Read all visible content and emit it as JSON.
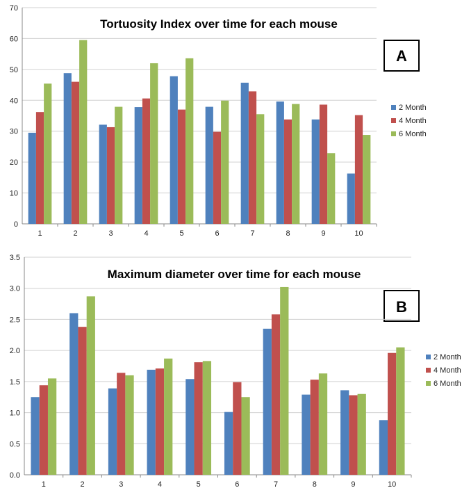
{
  "series_colors": [
    "#4f81bd",
    "#c0504d",
    "#9bbb59"
  ],
  "chart_data": [
    {
      "type": "bar",
      "panel_label": "A",
      "title": "Tortuosity Index over time for each mouse",
      "xlabel": "",
      "ylabel": "",
      "categories": [
        "1",
        "2",
        "3",
        "4",
        "5",
        "6",
        "7",
        "8",
        "9",
        "10"
      ],
      "ylim": [
        0,
        70
      ],
      "yticks": [
        "0",
        "10",
        "20",
        "30",
        "40",
        "50",
        "60",
        "70"
      ],
      "ytick_values": [
        0,
        10,
        20,
        30,
        40,
        50,
        60,
        70
      ],
      "grid": true,
      "legend_position": "right",
      "series": [
        {
          "name": "2 Month",
          "values": [
            29.5,
            48.8,
            32.1,
            37.8,
            47.8,
            37.9,
            45.7,
            39.6,
            33.8,
            16.3
          ]
        },
        {
          "name": "4 Month",
          "values": [
            36.2,
            46.0,
            31.3,
            40.6,
            37.0,
            29.8,
            42.9,
            33.8,
            38.6,
            35.2
          ]
        },
        {
          "name": "6 Month",
          "values": [
            45.4,
            59.5,
            37.9,
            52.0,
            53.6,
            39.9,
            35.5,
            38.8,
            22.9,
            28.8
          ]
        }
      ]
    },
    {
      "type": "bar",
      "panel_label": "B",
      "title": "Maximum diameter over time for each mouse",
      "xlabel": "",
      "ylabel": "",
      "categories": [
        "1",
        "2",
        "3",
        "4",
        "5",
        "6",
        "7",
        "8",
        "9",
        "10"
      ],
      "ylim": [
        0,
        3.5
      ],
      "yticks": [
        "0.0",
        "0.5",
        "1.0",
        "1.5",
        "2.0",
        "2.5",
        "3.0",
        "3.5"
      ],
      "ytick_values": [
        0,
        0.5,
        1.0,
        1.5,
        2.0,
        2.5,
        3.0,
        3.5
      ],
      "grid": true,
      "legend_position": "right",
      "series": [
        {
          "name": "2 Month",
          "values": [
            1.25,
            2.6,
            1.39,
            1.69,
            1.54,
            1.01,
            2.35,
            1.29,
            1.36,
            0.88
          ]
        },
        {
          "name": "4 Month",
          "values": [
            1.44,
            2.38,
            1.64,
            1.71,
            1.81,
            1.49,
            2.58,
            1.53,
            1.28,
            1.96
          ]
        },
        {
          "name": "6 Month",
          "values": [
            1.55,
            2.87,
            1.6,
            1.87,
            1.83,
            1.25,
            3.02,
            1.63,
            1.3,
            2.05
          ]
        }
      ]
    }
  ]
}
